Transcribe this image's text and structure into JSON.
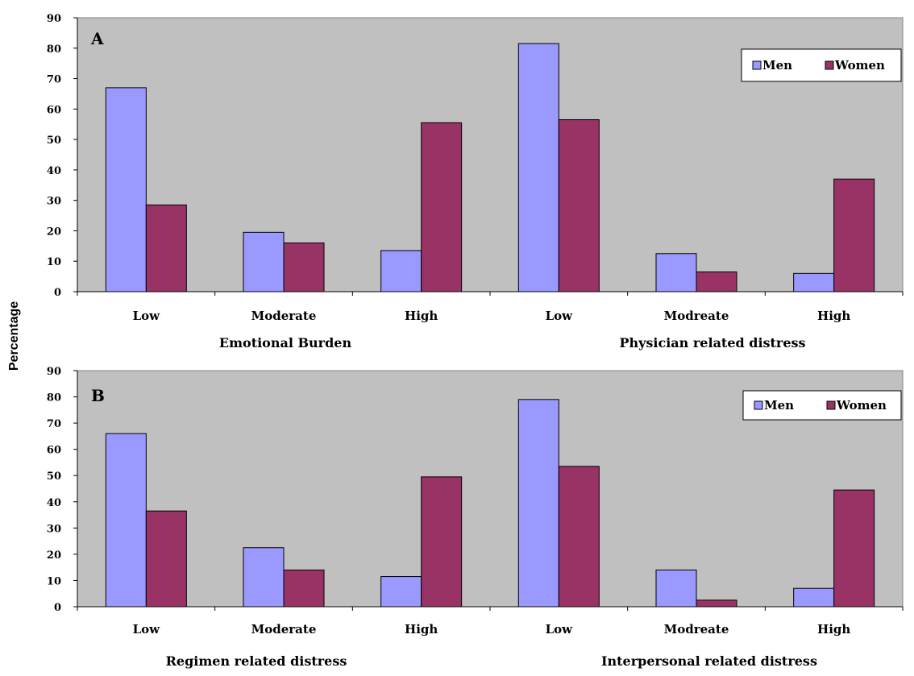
{
  "ylabel": "Percentage",
  "colors": {
    "men": "#9999ff",
    "women": "#993366",
    "plot_bg": "#c0c0c0",
    "legend_bg": "#ffffff"
  },
  "chart_data": [
    {
      "type": "bar",
      "panel": "A",
      "ylim": [
        0,
        90
      ],
      "yticks": [
        "0",
        "10",
        "20",
        "30",
        "40",
        "50",
        "60",
        "70",
        "80",
        "90"
      ],
      "legend_position": "top-right",
      "legend": [
        "Men",
        "Women"
      ],
      "categories": [
        "Low",
        "Moderate",
        "High",
        "Low",
        "Modreate",
        "High"
      ],
      "groups": [
        {
          "label": "Emotional Burden",
          "span": [
            0,
            2
          ]
        },
        {
          "label": "Physician related distress",
          "span": [
            3,
            5
          ]
        }
      ],
      "series": [
        {
          "name": "Men",
          "values": [
            67,
            19.5,
            13.5,
            81.5,
            12.5,
            6
          ]
        },
        {
          "name": "Women",
          "values": [
            28.5,
            16,
            55.5,
            56.5,
            6.5,
            37
          ]
        }
      ]
    },
    {
      "type": "bar",
      "panel": "B",
      "ylim": [
        0,
        90
      ],
      "yticks": [
        "0",
        "10",
        "20",
        "30",
        "40",
        "50",
        "60",
        "70",
        "80",
        "90"
      ],
      "legend_position": "top-right",
      "legend": [
        "Men",
        "Women"
      ],
      "categories": [
        "Low",
        "Moderate",
        "High",
        "Low",
        "Modreate",
        "High"
      ],
      "groups": [
        {
          "label": "Regimen related distress",
          "span": [
            0,
            2
          ]
        },
        {
          "label": "Interpersonal related distress",
          "span": [
            3,
            5
          ]
        }
      ],
      "series": [
        {
          "name": "Men",
          "values": [
            66,
            22.5,
            11.5,
            79,
            14,
            7
          ]
        },
        {
          "name": "Women",
          "values": [
            36.5,
            14,
            49.5,
            53.5,
            2.5,
            44.5
          ]
        }
      ]
    }
  ]
}
